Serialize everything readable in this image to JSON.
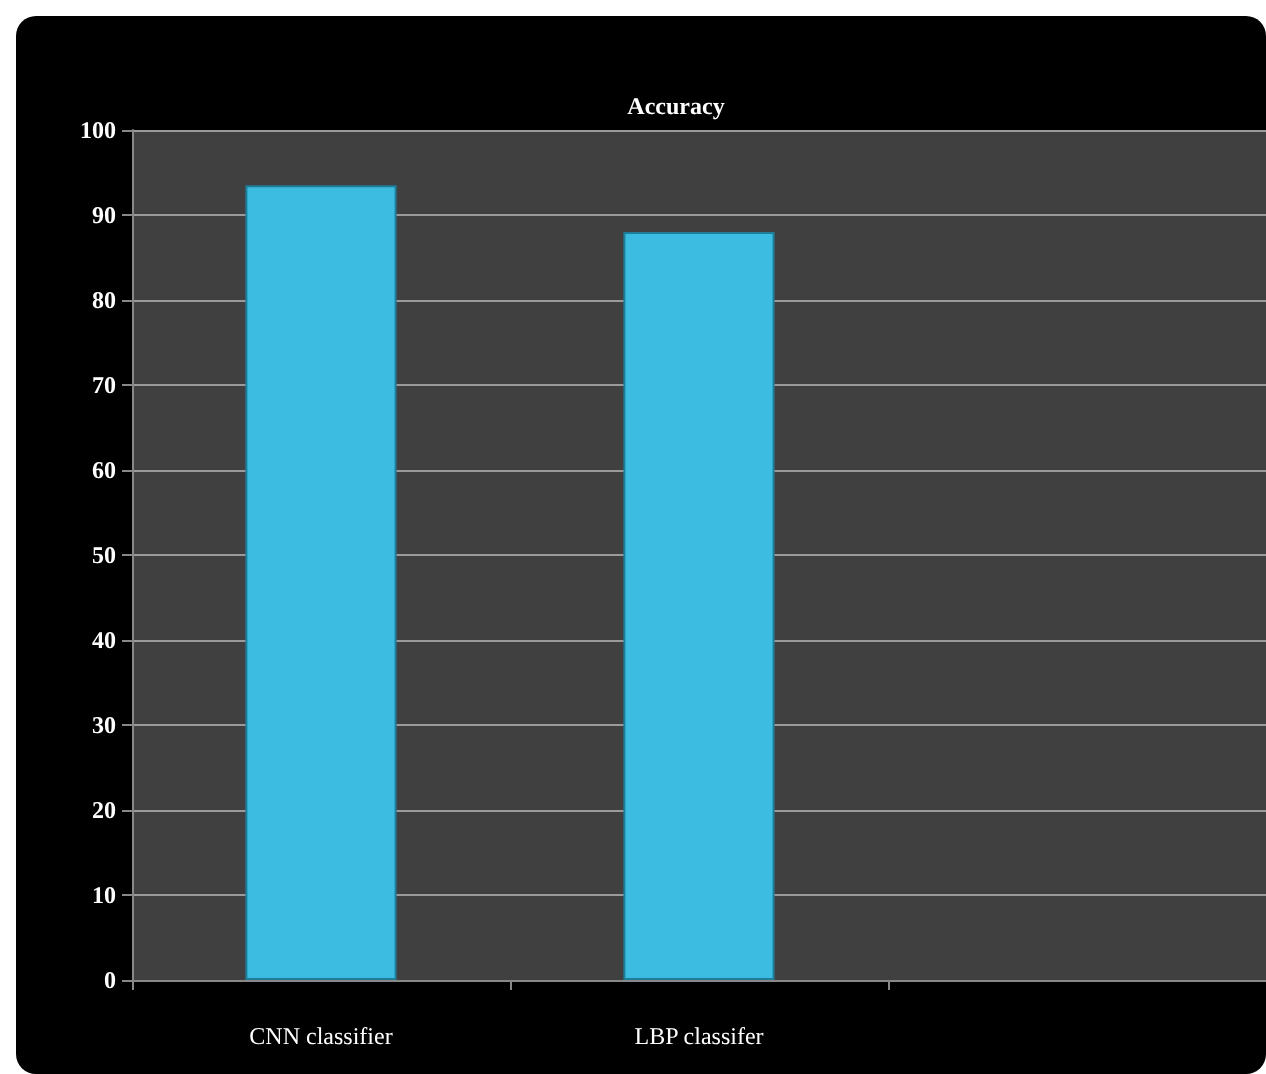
{
  "chart_data": {
    "type": "bar",
    "title": "Accuracy",
    "categories": [
      "CNN classifier",
      "LBP classifer",
      null
    ],
    "values": [
      93.5,
      88,
      null
    ],
    "color": "#3bbce0",
    "ylim": [
      0,
      100
    ],
    "yticks": [
      0,
      10,
      20,
      30,
      40,
      50,
      60,
      70,
      80,
      90,
      100
    ],
    "grid": "y"
  }
}
